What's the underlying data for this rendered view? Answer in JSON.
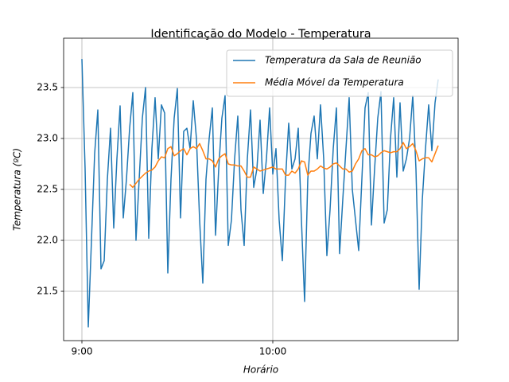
{
  "chart_data": {
    "type": "line",
    "title": "Identificação do Modelo - Temperatura",
    "xlabel": "Horário",
    "ylabel": "Temperatura (ºC)",
    "x": [
      0,
      1,
      2,
      3,
      4,
      5,
      6,
      7,
      8,
      9,
      10,
      11,
      12,
      13,
      14,
      15,
      16,
      17,
      18,
      19,
      20,
      21,
      22,
      23,
      24,
      25,
      26,
      27,
      28,
      29,
      30,
      31,
      32,
      33,
      34,
      35,
      36,
      37,
      38,
      39,
      40,
      41,
      42,
      43,
      44,
      45,
      46,
      47,
      48,
      49,
      50,
      51,
      52,
      53,
      54,
      55,
      56,
      57,
      58,
      59,
      60,
      61,
      62,
      63,
      64,
      65,
      66,
      67,
      68,
      69,
      70,
      71,
      72,
      73,
      74,
      75,
      76,
      77,
      78,
      79,
      80,
      81,
      82,
      83,
      84,
      85,
      86,
      87,
      88,
      89,
      90,
      91,
      92,
      93,
      94,
      95,
      96,
      97,
      98,
      99,
      100,
      101,
      102,
      103,
      104,
      105,
      106,
      107,
      108,
      109,
      110,
      111,
      112
    ],
    "series": [
      {
        "name": "Temperatura da Sala de Reunião",
        "color": "#1f77b4",
        "values": [
          23.78,
          22.7,
          21.15,
          22.0,
          22.85,
          23.28,
          21.72,
          21.8,
          22.6,
          23.1,
          22.12,
          22.8,
          23.32,
          22.22,
          22.6,
          23.1,
          23.45,
          22.0,
          22.6,
          23.2,
          23.5,
          22.02,
          22.9,
          23.4,
          22.8,
          23.33,
          23.25,
          21.68,
          22.6,
          23.2,
          23.49,
          22.22,
          23.07,
          23.1,
          22.9,
          23.37,
          23.0,
          22.2,
          21.58,
          22.6,
          23.0,
          23.3,
          22.05,
          22.7,
          23.2,
          23.42,
          21.95,
          22.2,
          22.8,
          23.22,
          22.3,
          21.95,
          22.8,
          23.28,
          22.52,
          22.7,
          23.18,
          22.46,
          22.8,
          23.3,
          22.65,
          22.9,
          22.2,
          21.8,
          22.6,
          23.15,
          22.7,
          22.8,
          23.1,
          22.2,
          21.4,
          22.6,
          23.05,
          23.22,
          22.8,
          23.33,
          22.8,
          21.85,
          22.3,
          22.9,
          23.3,
          21.87,
          22.4,
          22.9,
          23.4,
          22.5,
          22.2,
          21.9,
          22.6,
          23.3,
          23.45,
          22.15,
          22.7,
          23.2,
          23.46,
          22.17,
          22.3,
          23.0,
          23.4,
          22.62,
          23.35,
          22.68,
          22.8,
          23.0,
          23.42,
          22.7,
          21.52,
          22.4,
          22.9,
          23.33,
          22.88,
          23.35,
          23.58
        ]
      },
      {
        "name": "Média Móvel da Temperatura",
        "color": "#ff7f0e",
        "values": [
          null,
          null,
          null,
          null,
          null,
          null,
          null,
          null,
          null,
          null,
          null,
          null,
          null,
          null,
          null,
          22.55,
          22.52,
          22.56,
          22.6,
          22.63,
          22.66,
          22.68,
          22.69,
          22.72,
          22.78,
          22.82,
          22.81,
          22.9,
          22.92,
          22.83,
          22.85,
          22.88,
          22.9,
          22.84,
          22.9,
          22.92,
          22.9,
          22.95,
          22.88,
          22.8,
          22.8,
          22.78,
          22.72,
          22.8,
          22.83,
          22.85,
          22.75,
          22.74,
          22.74,
          22.73,
          22.73,
          22.68,
          22.62,
          22.62,
          22.72,
          22.7,
          22.68,
          22.69,
          22.7,
          22.71,
          22.72,
          22.7,
          22.7,
          22.7,
          22.64,
          22.64,
          22.68,
          22.66,
          22.7,
          22.78,
          22.77,
          22.64,
          22.68,
          22.68,
          22.7,
          22.73,
          22.71,
          22.7,
          22.72,
          22.75,
          22.76,
          22.73,
          22.7,
          22.7,
          22.67,
          22.68,
          22.75,
          22.8,
          22.88,
          22.9,
          22.84,
          22.84,
          22.82,
          22.83,
          22.86,
          22.88,
          22.87,
          22.86,
          22.87,
          22.87,
          22.9,
          22.96,
          22.9,
          22.92,
          22.95,
          22.88,
          22.78,
          22.8,
          22.81,
          22.81,
          22.77,
          22.85,
          22.93
        ]
      }
    ],
    "xlim": [
      -5.75,
      118.25
    ],
    "xticks": [
      {
        "value": 0,
        "label": "9:00"
      },
      {
        "value": 60,
        "label": "10:00"
      }
    ],
    "ylim": [
      21.016,
      23.984
    ],
    "yticks": [
      21.5,
      {
        "value": 22,
        "label": "22.0"
      },
      22.5,
      {
        "value": 23,
        "label": "23.0"
      },
      23.5
    ],
    "grid": true,
    "legend": "upper right"
  }
}
